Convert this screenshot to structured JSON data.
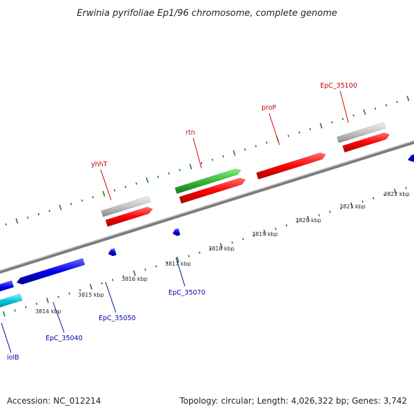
{
  "title": "Erwinia pyrifoliae Ep1/96 chromosome, complete genome",
  "footer": {
    "accession": "Accession: NC_012214",
    "topology": "Topology: circular; Length: 4,026,322 bp; Genes: 3,742"
  },
  "colors": {
    "forward_gene": "#ff0000",
    "reverse_gene": "#0000ee",
    "rna_gene": "#22aa22",
    "pseudo_gene": "#bbbbbb",
    "cyan_gene": "#00bbcc",
    "tick": "#1a7a1a",
    "label_forward": "#cc0000",
    "label_reverse": "#0000aa"
  },
  "kbp_labels": [
    "3814 kbp",
    "3815 kbp",
    "3816 kbp",
    "3817 kbp",
    "3818 kbp",
    "3819 kbp",
    "3820 kbp",
    "3821 kbp",
    "3822 kbp"
  ],
  "gene_labels": {
    "forward": [
      "yhhT",
      "rtn",
      "proP",
      "EpC_35100"
    ],
    "reverse": [
      "iolB",
      "EpC_35040",
      "EpC_35050",
      "EpC_35070"
    ]
  }
}
